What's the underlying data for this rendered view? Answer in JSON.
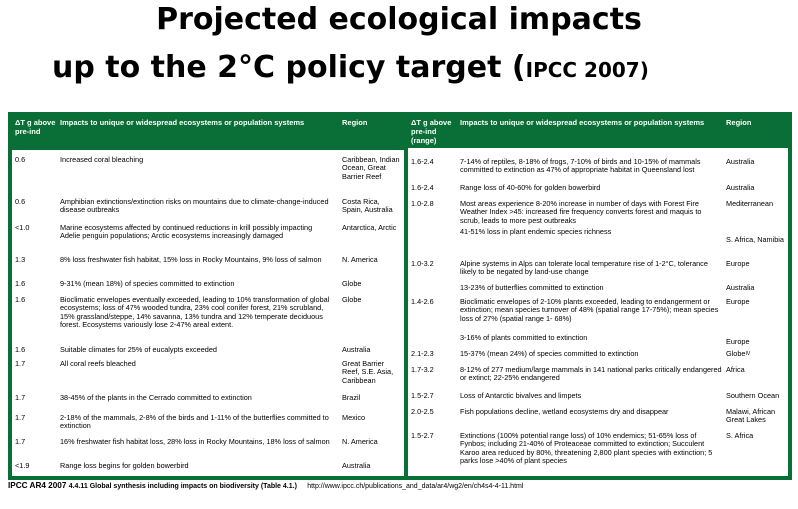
{
  "title_line1": "Projected ecological impacts",
  "title_line2": "up to the 2°C policy target (",
  "title_line2_small": "IPCC 2007)",
  "left_table": {
    "headers": [
      "ΔT g above pre-ind",
      "Impacts to unique or widespread ecosystems or population systems",
      "Region"
    ],
    "rows": [
      {
        "t": "0.6",
        "i": "Increased coral bleaching",
        "r": "Caribbean, Indian Ocean, Great Barrier Reef"
      },
      {
        "t": "0.6",
        "i": "Amphibian extinctions/extinction risks on mountains due to climate-change-induced disease outbreaks",
        "r": "Costa Rica, Spain, Australia"
      },
      {
        "t": "<1.0",
        "i": "Marine ecosystems affected by continued reductions in krill possibly impacting Adelie penguin populations; Arctic ecosystems increasingly damaged",
        "r": "Antarctica, Arctic"
      },
      {
        "t": "1.3",
        "i": "8% loss freshwater fish habitat, 15% loss in Rocky Mountains, 9% loss of salmon",
        "r": "N. America"
      },
      {
        "t": "1.6",
        "i": "9-31% (mean 18%) of species committed to extinction",
        "r": "Globe"
      },
      {
        "t": "1.6",
        "i": "Bioclimatic envelopes eventually exceeded, leading to 10% transformation of global ecosystems; loss of 47% wooded tundra, 23% cool conifer forest, 21% scrubland, 15% grassland/steppe, 14% savanna, 13% tundra and 12% temperate deciduous forest. Ecosystems variously lose 2-47% areal extent.",
        "r": "Globe"
      },
      {
        "t": "1.6",
        "i": "Suitable climates for 25% of eucalypts exceeded",
        "r": "Australia"
      },
      {
        "t": "1.7",
        "i": "All coral reefs bleached",
        "r": "Great Barrier Reef, S.E. Asia, Caribbean"
      },
      {
        "t": "1.7",
        "i": "38-45% of the plants in the Cerrado committed to extinction",
        "r": "Brazil"
      },
      {
        "t": "1.7",
        "i": "2-18% of the mammals, 2-8% of the birds and 1-11% of the butterflies committed to extinction",
        "r": "Mexico"
      },
      {
        "t": "1.7",
        "i": "16% freshwater fish habitat loss, 28% loss in Rocky Mountains, 18% loss of salmon",
        "r": "N. America"
      },
      {
        "t": "<1.9",
        "i": "Range loss begins for golden bowerbird",
        "r": "Australia"
      }
    ]
  },
  "right_table": {
    "headers": [
      "ΔT g above pre-ind (range)",
      "Impacts to unique or widespread ecosystems or population systems",
      "Region"
    ],
    "rows": [
      {
        "t": "1.6-2.4",
        "i": "7-14% of reptiles, 8-18% of frogs, 7-10% of birds and 10-15% of mammals committed to extinction as 47% of appropriate habitat in Queensland lost",
        "r": "Australia"
      },
      {
        "t": "1.6-2.4",
        "i": "Range loss of 40-60% for golden bowerbird",
        "r": "Australia"
      },
      {
        "t": "1.0-2.8",
        "i": "Most areas experience 8-20% increase in number of days with Forest Fire Weather Index >45: increased fire frequency converts forest and maquis to scrub, leads to more pest outbreaks",
        "r": "Mediterranean"
      },
      {
        "t": "",
        "i": "41-51% loss in plant endemic species richness",
        "r": "S. Africa, Namibia"
      },
      {
        "t": "1.0-3.2",
        "i": "Alpine systems in Alps can tolerate local temperature rise of 1-2°C, tolerance likely to be negated by land-use change",
        "r": "Europe"
      },
      {
        "t": "",
        "i": "13-23% of butterflies committed to extinction",
        "r": "Australia"
      },
      {
        "t": "1.4-2.6",
        "i": "Bioclimatic envelopes of 2-10% plants exceeded, leading to endangerment or extinction; mean species turnover of 48% (spatial range 17-75%); mean species loss of 27% (spatial range 1- 68%)",
        "r": "Europe"
      },
      {
        "t": "",
        "i": "3-16% of plants committed to extinction",
        "r": "Europe"
      },
      {
        "t": "2.1-2.3",
        "i": "15-37% (mean 24%) of species committed to extinction",
        "r": "Globe"
      },
      {
        "t": "1.7-3.2",
        "i": "8-12% of 277 medium/large mammals in 141 national parks critically endangered or extinct; 22-25% endangered",
        "r": "Africa"
      },
      {
        "t": "1.5-2.7",
        "i": "Loss of Antarctic bivalves and limpets",
        "r": "Southern Ocean"
      },
      {
        "t": "2.0-2.5",
        "i": "Fish populations decline, wetland ecosystems dry and disappear",
        "r": "Malawi, African Great Lakes"
      },
      {
        "t": "1.5-2.7",
        "i": "Extinctions (100% potential range loss) of 10% endemics; 51-65% loss of Fynbos; including 21-40% of Proteaceae committed to extinction; Succulent Karoo area reduced by 80%, threatening 2,800 plant species with extinction; 5 parks lose >40% of plant species",
        "r": "S. Africa"
      }
    ]
  },
  "footer": {
    "source": "IPCC AR4 2007",
    "caption": "4.4.11 Global synthesis including impacts on biodiversity  (Table 4.1.)",
    "url": "http://www.ipcc.ch/publications_and_data/ar4/wg2/en/ch4s4-4-11.html"
  },
  "colors": {
    "accent_green": "#0a6e37",
    "header_text": "#ffffff"
  }
}
